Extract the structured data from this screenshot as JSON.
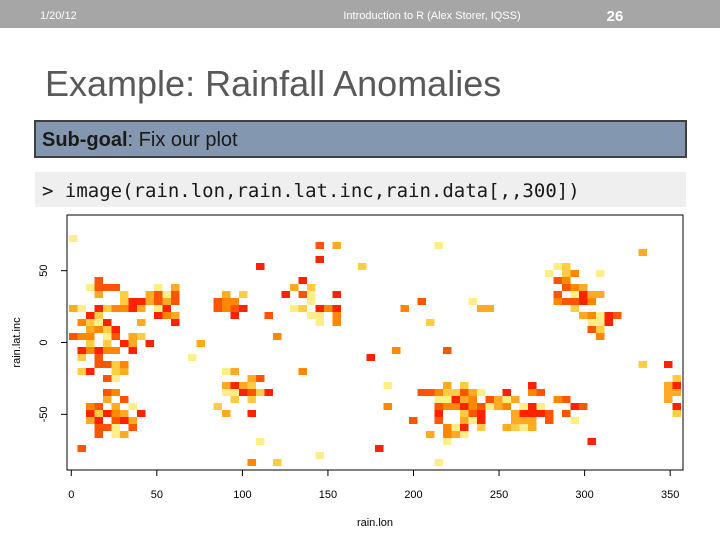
{
  "header": {
    "date": "1/20/12",
    "center": "Introduction to R (Alex Storer, IQSS)",
    "page": "26"
  },
  "title": "Example: Rainfall Anomalies",
  "subgoal": {
    "label": "Sub-goal",
    "text": ": Fix our plot"
  },
  "code": "> image(rain.lon,rain.lat.inc,rain.data[,,300])",
  "chart_data": {
    "type": "image",
    "xlabel": "rain.lon",
    "ylabel": "rain.lat.inc",
    "xlim": [
      -2.5,
      357.5
    ],
    "ylim": [
      -88.75,
      88.75
    ],
    "xticks": [
      0,
      50,
      100,
      150,
      200,
      250,
      300,
      350
    ],
    "yticks": [
      -50,
      0,
      50
    ]
  }
}
